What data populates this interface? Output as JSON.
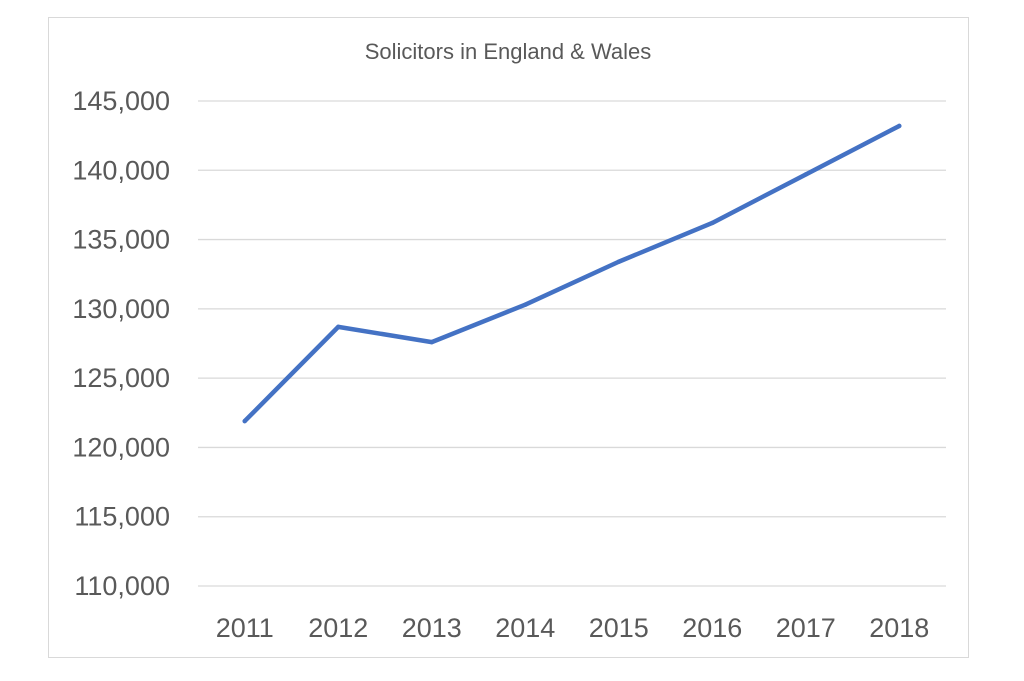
{
  "chart_data": {
    "type": "line",
    "title": "Solicitors in England & Wales",
    "xlabel": "",
    "ylabel": "",
    "categories": [
      "2011",
      "2012",
      "2013",
      "2014",
      "2015",
      "2016",
      "2017",
      "2018"
    ],
    "series": [
      {
        "values": [
          121900,
          128700,
          127600,
          130300,
          133400,
          136200,
          139700,
          143200
        ],
        "color": "#4472c4"
      }
    ],
    "ylim": [
      110000,
      145000
    ],
    "yticks": [
      110000,
      115000,
      120000,
      125000,
      130000,
      135000,
      140000,
      145000
    ],
    "ytick_labels": [
      "110,000",
      "115,000",
      "120,000",
      "125,000",
      "130,000",
      "135,000",
      "140,000",
      "145,000"
    ],
    "grid": true,
    "legend": "none",
    "colors": {
      "line": "#4472c4",
      "grid": "#d9d9d9",
      "text": "#595959"
    }
  }
}
